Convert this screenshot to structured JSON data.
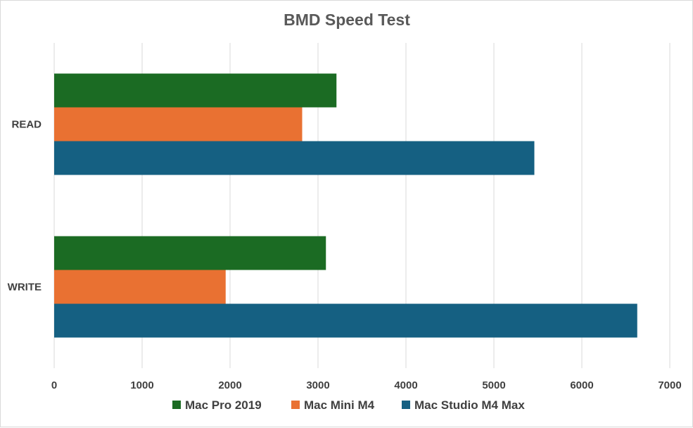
{
  "chart_data": {
    "type": "bar",
    "orientation": "horizontal",
    "title": "BMD Speed Test",
    "xlabel": "",
    "ylabel": "",
    "categories": [
      "READ",
      "WRITE"
    ],
    "series": [
      {
        "name": "Mac Pro 2019",
        "color": "#1b6b23",
        "values": [
          3210,
          3090
        ]
      },
      {
        "name": "Mac Mini M4",
        "color": "#e97132",
        "values": [
          2820,
          1950
        ]
      },
      {
        "name": "Mac Studio M4 Max",
        "color": "#156082",
        "values": [
          5460,
          6630
        ]
      }
    ],
    "xlim": [
      0,
      7000
    ],
    "xticks": [
      "0",
      "1000",
      "2000",
      "3000",
      "4000",
      "5000",
      "6000",
      "7000"
    ],
    "grid": true,
    "legend_position": "bottom"
  }
}
